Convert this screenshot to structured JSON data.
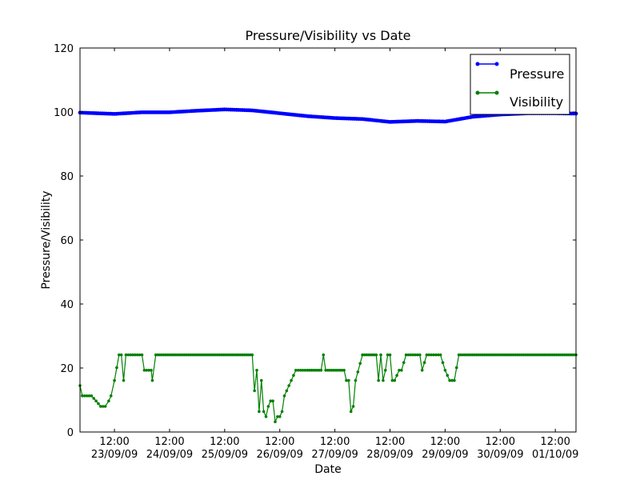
{
  "chart_data": {
    "type": "line",
    "title": "Pressure/Visibility vs Date",
    "xlabel": "Date",
    "ylabel": "Pressure/Visibility",
    "ylim": [
      0,
      120
    ],
    "yticks": [
      0,
      20,
      40,
      60,
      80,
      100,
      120
    ],
    "xlim": [
      "2009-09-22T21:00",
      "2009-10-01T21:00"
    ],
    "xticks": [
      {
        "time": "12:00",
        "date": "23/09/09"
      },
      {
        "time": "12:00",
        "date": "24/09/09"
      },
      {
        "time": "12:00",
        "date": "25/09/09"
      },
      {
        "time": "12:00",
        "date": "26/09/09"
      },
      {
        "time": "12:00",
        "date": "27/09/09"
      },
      {
        "time": "12:00",
        "date": "28/09/09"
      },
      {
        "time": "12:00",
        "date": "29/09/09"
      },
      {
        "time": "12:00",
        "date": "30/09/09"
      },
      {
        "time": "12:00",
        "date": "01/10/09"
      }
    ],
    "grid": false,
    "legend_position": "top-right",
    "series": [
      {
        "name": "Pressure",
        "color": "#0000ff",
        "marker": "dot",
        "x": [
          "2009-09-22T21:00",
          "2009-09-23T12:00",
          "2009-09-24T00:00",
          "2009-09-24T12:00",
          "2009-09-25T00:00",
          "2009-09-25T12:00",
          "2009-09-26T00:00",
          "2009-09-26T12:00",
          "2009-09-27T00:00",
          "2009-09-27T12:00",
          "2009-09-28T00:00",
          "2009-09-28T12:00",
          "2009-09-29T00:00",
          "2009-09-29T12:00",
          "2009-09-30T00:00",
          "2009-09-30T12:00",
          "2009-10-01T00:00",
          "2009-10-01T12:00",
          "2009-10-01T21:00"
        ],
        "values": [
          99.8,
          99.4,
          99.9,
          99.9,
          100.4,
          100.8,
          100.5,
          99.6,
          98.7,
          98.1,
          97.8,
          96.9,
          97.2,
          97.0,
          98.5,
          99.2,
          99.6,
          99.6,
          99.5
        ]
      },
      {
        "name": "Visibility",
        "color": "#008000",
        "marker": "dot",
        "x": [
          "2009-09-22T21:00",
          "2009-09-22T22:00",
          "2009-09-23T02:00",
          "2009-09-23T04:00",
          "2009-09-23T06:00",
          "2009-09-23T08:00",
          "2009-09-23T09:30",
          "2009-09-23T10:30",
          "2009-09-23T12:00",
          "2009-09-23T14:00",
          "2009-09-23T15:00",
          "2009-09-23T16:00",
          "2009-09-23T17:00",
          "2009-09-23T18:00",
          "2009-09-23T20:00",
          "2009-09-24T00:00",
          "2009-09-24T01:00",
          "2009-09-24T04:00",
          "2009-09-24T04:30",
          "2009-09-24T06:00",
          "2009-09-26T00:00",
          "2009-09-26T01:00",
          "2009-09-26T02:00",
          "2009-09-26T03:00",
          "2009-09-26T04:00",
          "2009-09-26T05:00",
          "2009-09-26T06:00",
          "2009-09-26T07:00",
          "2009-09-26T08:00",
          "2009-09-26T09:00",
          "2009-09-26T10:00",
          "2009-09-26T11:00",
          "2009-09-26T12:00",
          "2009-09-26T13:00",
          "2009-09-26T14:00",
          "2009-09-26T15:00",
          "2009-09-26T17:00",
          "2009-09-26T19:00",
          "2009-09-26T21:00",
          "2009-09-27T00:00",
          "2009-09-27T06:00",
          "2009-09-27T07:00",
          "2009-09-27T08:00",
          "2009-09-27T16:00",
          "2009-09-27T17:00",
          "2009-09-27T18:00",
          "2009-09-27T19:00",
          "2009-09-27T20:00",
          "2009-09-27T21:00",
          "2009-09-28T00:00",
          "2009-09-28T06:00",
          "2009-09-28T07:00",
          "2009-09-28T08:00",
          "2009-09-28T09:00",
          "2009-09-28T10:00",
          "2009-09-28T11:00",
          "2009-09-28T12:00",
          "2009-09-28T13:00",
          "2009-09-28T14:00",
          "2009-09-28T16:00",
          "2009-09-28T17:00",
          "2009-09-28T19:00",
          "2009-09-28T20:00",
          "2009-09-28T22:00",
          "2009-09-29T00:00",
          "2009-09-29T01:00",
          "2009-09-29T02:00",
          "2009-09-29T04:00",
          "2009-09-29T06:00",
          "2009-09-29T08:00",
          "2009-09-29T10:00",
          "2009-09-29T12:00",
          "2009-09-29T14:00",
          "2009-09-29T16:00",
          "2009-09-29T18:00",
          "2009-09-30T00:00",
          "2009-10-01T21:00"
        ],
        "values": [
          14.5,
          11.3,
          11.3,
          9.7,
          8.0,
          8.0,
          9.7,
          11.3,
          16.1,
          24.1,
          24.1,
          16.1,
          24.1,
          24.1,
          24.1,
          24.1,
          19.3,
          19.3,
          16.1,
          24.1,
          24.1,
          12.9,
          19.3,
          6.4,
          16.1,
          6.4,
          4.8,
          8.0,
          9.7,
          9.7,
          3.2,
          4.8,
          4.8,
          6.4,
          11.3,
          12.9,
          16.1,
          19.3,
          19.3,
          19.3,
          19.3,
          24.1,
          19.3,
          19.3,
          16.1,
          16.1,
          6.4,
          8.0,
          16.1,
          24.1,
          24.1,
          16.1,
          24.1,
          16.1,
          19.3,
          24.1,
          24.1,
          16.1,
          16.1,
          19.3,
          19.3,
          24.1,
          24.1,
          24.1,
          24.1,
          24.1,
          19.3,
          24.1,
          24.1,
          24.1,
          24.1,
          19.3,
          16.1,
          16.1,
          24.1,
          24.1,
          24.1
        ]
      }
    ]
  }
}
